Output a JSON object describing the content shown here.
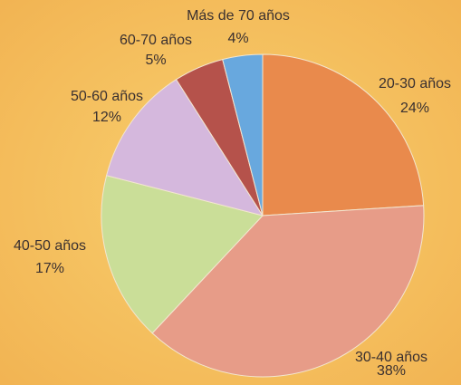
{
  "chart_data": {
    "type": "pie",
    "categories": [
      "20-30 años",
      "30-40 años",
      "40-50 años",
      "50-60 años",
      "60-70 años",
      "Más de 70 años"
    ],
    "values": [
      24,
      38,
      17,
      12,
      5,
      4
    ],
    "value_labels": [
      "24%",
      "38%",
      "17%",
      "12%",
      "5%",
      "4%"
    ],
    "colors": [
      "#e98a4c",
      "#e79c88",
      "#cade98",
      "#d5b8dd",
      "#b5524b",
      "#68a8de"
    ]
  }
}
